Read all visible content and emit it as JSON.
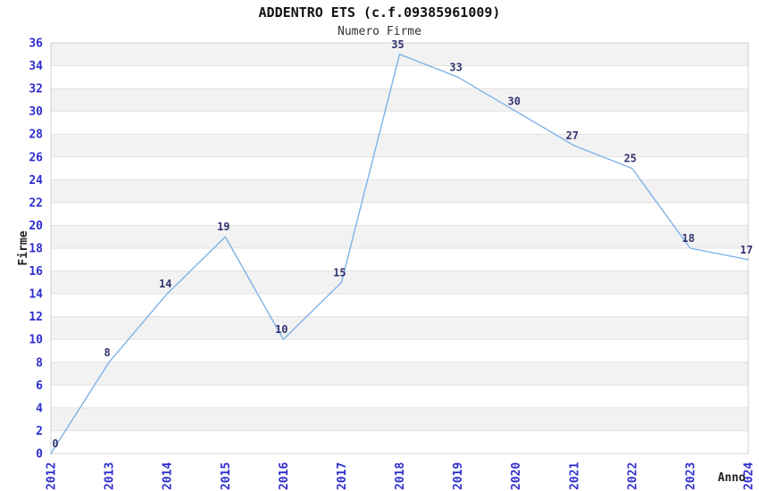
{
  "chart_data": {
    "type": "line",
    "title": "ADDENTRO ETS (c.f.09385961009)",
    "subtitle": "Numero Firme",
    "xlabel": "Anno",
    "ylabel": "Firme",
    "categories": [
      "2012",
      "2013",
      "2014",
      "2015",
      "2016",
      "2017",
      "2018",
      "2019",
      "2020",
      "2021",
      "2022",
      "2023",
      "2024"
    ],
    "values": [
      0,
      8,
      14,
      19,
      10,
      15,
      35,
      33,
      30,
      27,
      25,
      18,
      17
    ],
    "ylim": [
      0,
      36
    ],
    "ytick_step": 2,
    "grid": "horizontal-bands-alternating",
    "legend": "none",
    "data_labels_visible": true,
    "x_tick_rotation": -90,
    "colors": {
      "line": "#7db3e8",
      "tick_label": "#2e2ecf",
      "data_label": "#333370",
      "band": "#f2f2f2",
      "band_alt": "#ffffff",
      "grid_line": "#e2e2e2",
      "plot_border": "#d0d0d0",
      "title": "#111111",
      "subtitle": "#333333",
      "axis_title": "#222222",
      "background": "#ffffff"
    }
  }
}
